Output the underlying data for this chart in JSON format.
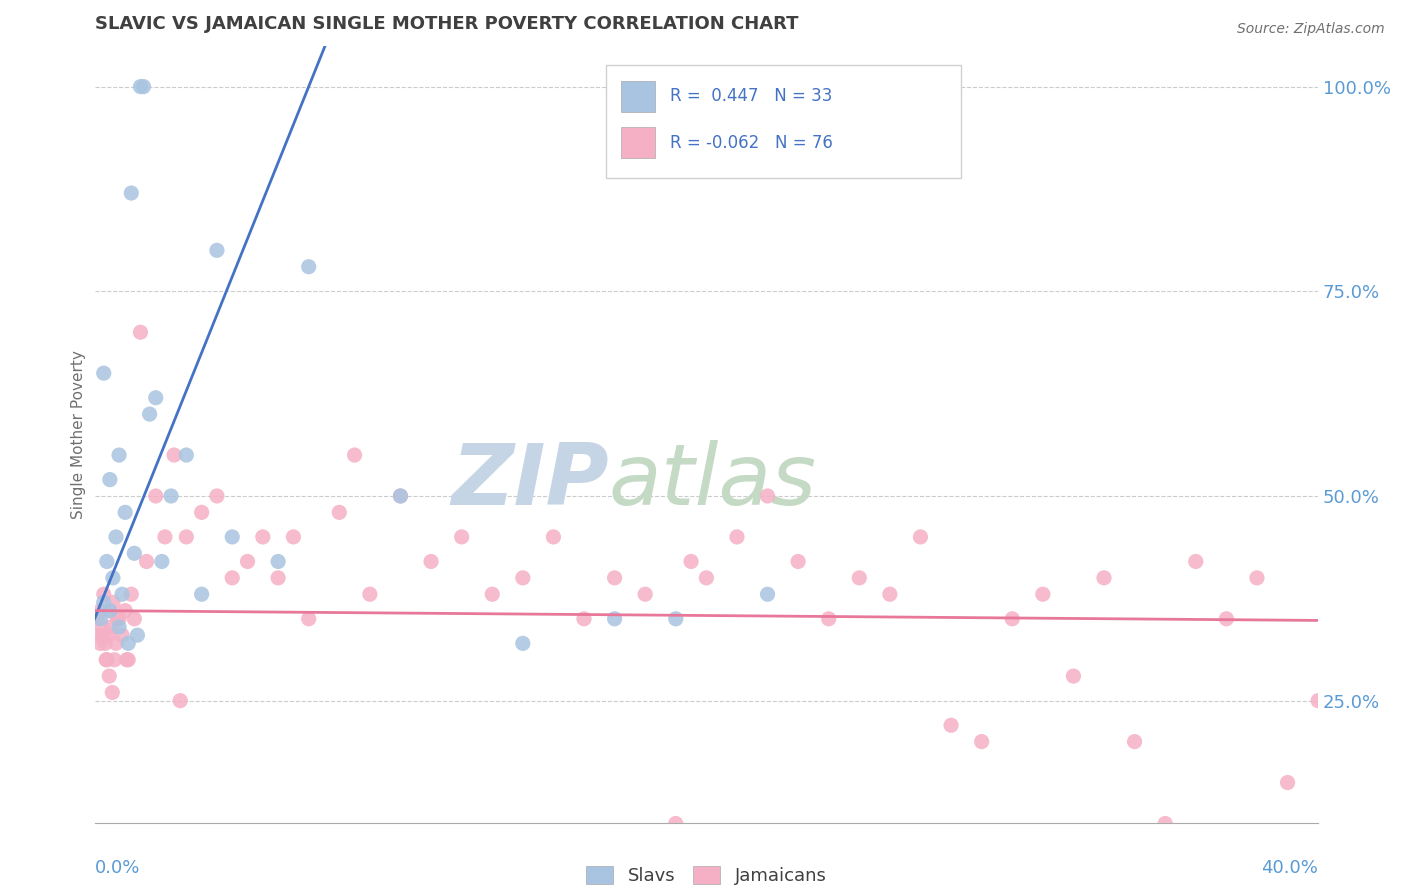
{
  "title": "SLAVIC VS JAMAICAN SINGLE MOTHER POVERTY CORRELATION CHART",
  "source": "Source: ZipAtlas.com",
  "ylabel": "Single Mother Poverty",
  "xmin": 0.0,
  "xmax": 40.0,
  "ymin": 10.0,
  "ymax": 105.0,
  "yticks": [
    25.0,
    50.0,
    75.0,
    100.0
  ],
  "slavic_R": 0.447,
  "slavic_N": 33,
  "jamaican_R": -0.062,
  "jamaican_N": 76,
  "slavic_color": "#a8c4e0",
  "jamaican_color": "#f5b0c5",
  "slavic_line_color": "#4472c4",
  "jamaican_line_color": "#e8789a",
  "watermark_zip": "ZIP",
  "watermark_atlas": "atlas",
  "watermark_color_zip": "#c8d8e8",
  "watermark_color_atlas": "#c8d8c8",
  "title_color": "#404040",
  "axis_label_color": "#5b9bd5",
  "legend_text_color": "#4472c4",
  "slavic_x": [
    1.5,
    1.6,
    1.2,
    0.3,
    4.0,
    7.0,
    2.0,
    0.8,
    0.5,
    1.0,
    0.7,
    1.3,
    0.4,
    0.6,
    0.9,
    2.5,
    3.0,
    1.8,
    0.2,
    0.3,
    0.5,
    0.8,
    1.1,
    1.4,
    2.2,
    3.5,
    4.5,
    6.0,
    10.0,
    14.0,
    17.0,
    19.0,
    22.0
  ],
  "slavic_y": [
    100,
    100,
    87,
    65,
    80,
    78,
    62,
    55,
    52,
    48,
    45,
    43,
    42,
    40,
    38,
    50,
    55,
    60,
    35,
    37,
    36,
    34,
    32,
    33,
    42,
    38,
    45,
    42,
    50,
    32,
    35,
    35,
    38
  ],
  "jamaican_x": [
    0.1,
    0.15,
    0.2,
    0.25,
    0.3,
    0.35,
    0.4,
    0.45,
    0.5,
    0.55,
    0.6,
    0.65,
    0.7,
    0.8,
    0.9,
    1.0,
    1.1,
    1.2,
    1.3,
    1.5,
    1.7,
    2.0,
    2.3,
    2.6,
    3.0,
    3.5,
    4.0,
    4.5,
    5.0,
    5.5,
    6.0,
    7.0,
    8.0,
    9.0,
    10.0,
    11.0,
    12.0,
    13.0,
    14.0,
    15.0,
    16.0,
    17.0,
    18.0,
    19.0,
    20.0,
    21.0,
    22.0,
    23.0,
    24.0,
    25.0,
    26.0,
    27.0,
    28.0,
    29.0,
    30.0,
    31.0,
    32.0,
    33.0,
    34.0,
    35.0,
    36.0,
    37.0,
    38.0,
    39.0,
    40.0,
    0.18,
    0.28,
    0.38,
    0.48,
    0.58,
    0.75,
    1.05,
    2.8,
    6.5,
    8.5,
    19.5
  ],
  "jamaican_y": [
    35,
    33,
    36,
    34,
    38,
    32,
    30,
    33,
    36,
    34,
    37,
    30,
    32,
    35,
    33,
    36,
    30,
    38,
    35,
    70,
    42,
    50,
    45,
    55,
    45,
    48,
    50,
    40,
    42,
    45,
    40,
    35,
    48,
    38,
    50,
    42,
    45,
    38,
    40,
    45,
    35,
    40,
    38,
    10,
    40,
    45,
    50,
    42,
    35,
    40,
    38,
    45,
    22,
    20,
    35,
    38,
    28,
    40,
    20,
    10,
    42,
    35,
    40,
    15,
    25,
    32,
    33,
    30,
    28,
    26,
    35,
    30,
    25,
    45,
    55,
    42
  ]
}
